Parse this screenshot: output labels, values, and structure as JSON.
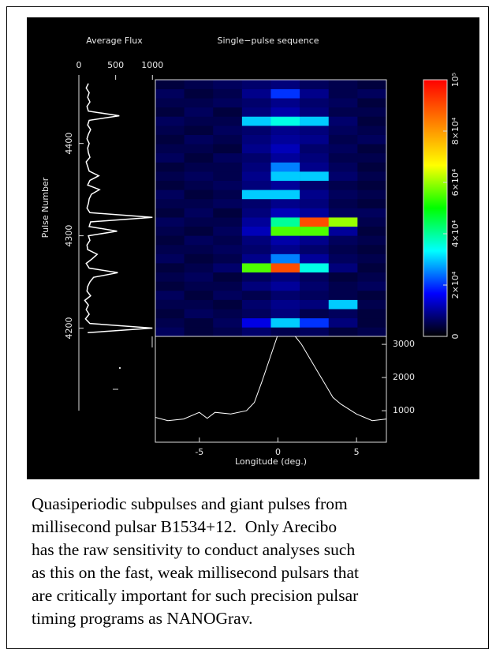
{
  "chart_data": [
    {
      "type": "line",
      "title": "Average Flux",
      "ylabel": "Pulse Number",
      "color": "#ffffff",
      "y": [
        4195,
        4200,
        4205,
        4210,
        4215,
        4220,
        4225,
        4230,
        4235,
        4240,
        4245,
        4250,
        4255,
        4260,
        4265,
        4270,
        4275,
        4280,
        4285,
        4290,
        4295,
        4300,
        4305,
        4310,
        4315,
        4320,
        4325,
        4330,
        4335,
        4340,
        4345,
        4350,
        4355,
        4360,
        4365,
        4370,
        4375,
        4380,
        4385,
        4390,
        4395,
        4400,
        4405,
        4410,
        4415,
        4420,
        4425,
        4430,
        4435,
        4440,
        4445,
        4450,
        4455,
        4460,
        4465
      ],
      "values": [
        120,
        1000,
        150,
        90,
        140,
        100,
        130,
        80,
        160,
        110,
        120,
        150,
        200,
        530,
        140,
        100,
        180,
        250,
        120,
        110,
        150,
        130,
        520,
        140,
        160,
        1000,
        150,
        110,
        130,
        140,
        170,
        280,
        120,
        150,
        270,
        140,
        120,
        100,
        150,
        130,
        120,
        140,
        110,
        130,
        160,
        120,
        140,
        550,
        130,
        110,
        150,
        120,
        140,
        100,
        130
      ],
      "xlim": [
        0,
        1040
      ],
      "xticks": [
        0,
        500,
        1000
      ],
      "ylim": [
        4191,
        4469
      ],
      "yticks": [
        4200,
        4300,
        4400
      ]
    },
    {
      "type": "heatmap",
      "title": "Single−pulse sequence",
      "xlim": [
        -7.8,
        6.9
      ],
      "ylim": [
        4191,
        4469
      ],
      "z": [
        [
          6000,
          4000,
          5000,
          7000,
          5000,
          6000,
          4000,
          5000
        ],
        [
          5000,
          4000,
          6000,
          15000,
          30000,
          20000,
          8000,
          4000
        ],
        [
          4000,
          6000,
          5000,
          6000,
          8000,
          5000,
          6000,
          4000
        ],
        [
          5000,
          5000,
          4000,
          7000,
          9000,
          8000,
          30000,
          5000
        ],
        [
          6000,
          4000,
          6000,
          5000,
          7000,
          6000,
          5000,
          4000
        ],
        [
          4000,
          5000,
          5000,
          8000,
          10000,
          7000,
          5000,
          6000
        ],
        [
          5000,
          6000,
          4000,
          6000,
          8000,
          6000,
          4000,
          5000
        ],
        [
          4000,
          5000,
          7000,
          55000,
          90000,
          35000,
          8000,
          4000
        ],
        [
          6000,
          4000,
          5000,
          9000,
          25000,
          10000,
          6000,
          5000
        ],
        [
          5000,
          5000,
          6000,
          7000,
          9000,
          7000,
          5000,
          4000
        ],
        [
          4000,
          6000,
          5000,
          8000,
          11000,
          9000,
          6000,
          5000
        ],
        [
          5000,
          4000,
          6000,
          12000,
          55000,
          55000,
          10000,
          4000
        ],
        [
          6000,
          5000,
          5000,
          10000,
          40000,
          90000,
          60000,
          5000
        ],
        [
          4000,
          6000,
          4000,
          8000,
          12000,
          10000,
          6000,
          6000
        ],
        [
          5000,
          5000,
          6000,
          7000,
          9000,
          8000,
          5000,
          4000
        ],
        [
          6000,
          4000,
          5000,
          30000,
          30000,
          9000,
          6000,
          5000
        ],
        [
          4000,
          5000,
          6000,
          8000,
          10000,
          7000,
          5000,
          4000
        ],
        [
          5000,
          6000,
          5000,
          9000,
          30000,
          30000,
          7000,
          5000
        ],
        [
          4000,
          5000,
          5000,
          8000,
          25000,
          9000,
          6000,
          4000
        ],
        [
          6000,
          4000,
          6000,
          7000,
          10000,
          8000,
          5000,
          5000
        ],
        [
          5000,
          5000,
          4000,
          9000,
          12000,
          7000,
          6000,
          4000
        ],
        [
          4000,
          6000,
          5000,
          8000,
          10000,
          9000,
          5000,
          6000
        ],
        [
          5000,
          4000,
          6000,
          7000,
          9000,
          8000,
          6000,
          5000
        ],
        [
          6000,
          5000,
          5000,
          30000,
          35000,
          30000,
          7000,
          4000
        ],
        [
          4000,
          6000,
          4000,
          8000,
          11000,
          8000,
          5000,
          5000
        ],
        [
          5000,
          5000,
          6000,
          7000,
          9000,
          7000,
          6000,
          4000
        ],
        [
          6000,
          4000,
          5000,
          9000,
          20000,
          9000,
          5000,
          6000
        ],
        [
          4000,
          5000,
          6000,
          7000,
          8000,
          6000,
          5000,
          4000
        ]
      ],
      "colormap": [
        "#000000",
        "#0000ff",
        "#00ffff",
        "#00ff00",
        "#ffff00",
        "#ff8000",
        "#ff0000"
      ],
      "clim": [
        0,
        100000
      ],
      "cticks": [
        0,
        {
          "value": 20000,
          "label": "2×10⁴"
        },
        {
          "value": 40000,
          "label": "4×10⁴"
        },
        {
          "value": 60000,
          "label": "6×10⁴"
        },
        {
          "value": 80000,
          "label": "8×10⁴"
        },
        {
          "value": 100000,
          "label": "10⁵"
        }
      ]
    },
    {
      "type": "line",
      "xlabel": "Longitude (deg.)",
      "color": "#ffffff",
      "x": [
        -7.8,
        -7,
        -6,
        -5,
        -4.5,
        -4,
        -3,
        -2,
        -1.5,
        -1,
        -0.5,
        0,
        1,
        1.5,
        2,
        2.5,
        3,
        3.5,
        4,
        5,
        5.5,
        6,
        6.9
      ],
      "values": [
        800,
        700,
        750,
        950,
        770,
        950,
        900,
        1000,
        1250,
        1900,
        2600,
        3300,
        3300,
        3000,
        2600,
        2200,
        1800,
        1400,
        1200,
        900,
        800,
        700,
        750
      ],
      "xlim": [
        -7.8,
        6.9
      ],
      "xticks": [
        -5,
        0,
        5
      ],
      "ylim": [
        50,
        3240
      ],
      "yticks": [
        1000,
        2000,
        3000
      ]
    }
  ],
  "caption": [
    "Quasiperiodic subpulses and giant pulses from",
    "millisecond pulsar B1534+12.  Only Arecibo",
    "has the raw sensitivity to conduct analyses such",
    "as this on the fast, weak millisecond pulsars that",
    "are critically important for such precision pulsar",
    "timing programs as NANOGrav."
  ]
}
